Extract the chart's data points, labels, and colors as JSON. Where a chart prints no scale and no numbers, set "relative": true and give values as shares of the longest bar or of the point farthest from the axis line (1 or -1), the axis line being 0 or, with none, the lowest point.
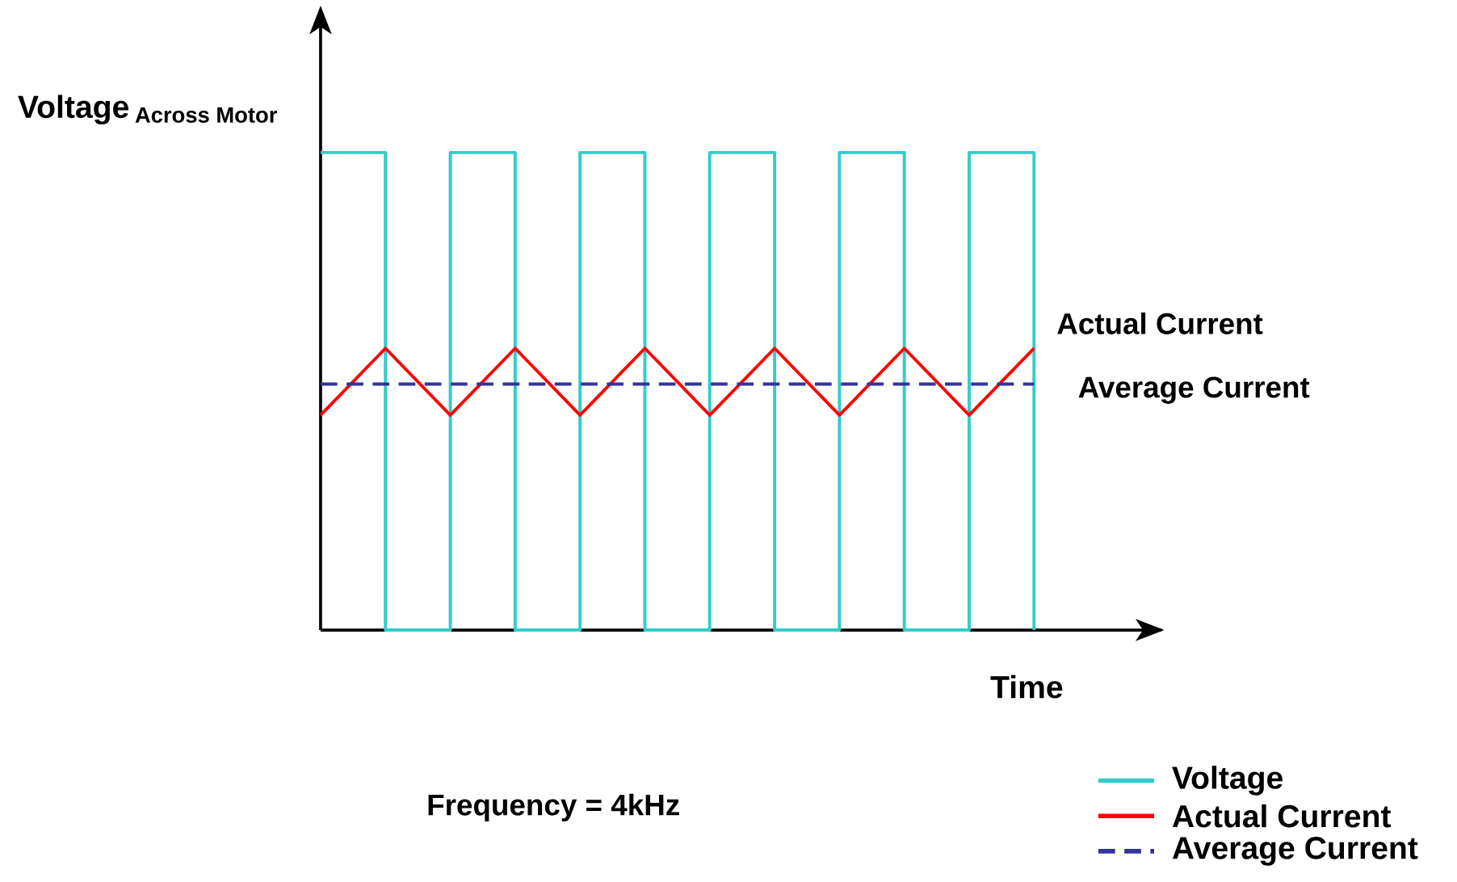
{
  "chart_data": {
    "type": "line",
    "relative": true,
    "xlabel": "Time",
    "ylabel": "\\textbf{Voltage}\\,_{\\textbf{Across Motor}}",
    "categories": [
      null,
      null,
      null,
      null,
      null,
      null,
      null,
      null,
      null,
      null,
      null,
      null
    ],
    "series": [
      {
        "name": "Voltage",
        "type": "step",
        "color": "#33cccc",
        "values": [
          1,
          0,
          1,
          0,
          1,
          0,
          1,
          0,
          1,
          0,
          1,
          0
        ]
      },
      {
        "name": "Actual Current",
        "color": "#ff0000",
        "values": [
          0.45,
          0.59,
          0.45,
          0.59,
          0.45,
          0.59,
          0.45,
          0.59,
          0.45,
          0.59,
          0.45,
          0.59
        ]
      },
      {
        "name": "Average Current",
        "color": "#333399",
        "line_style": "dashed",
        "values": [
          0.515,
          0.515,
          0.515,
          0.515,
          0.515,
          0.515,
          0.515,
          0.515,
          0.515,
          0.515,
          0.515,
          0.515
        ]
      }
    ],
    "annotations": [
      "Actual Current",
      "Average Current",
      "Frequency = 4kHz"
    ],
    "legend": "bottom right",
    "marker": "none"
  }
}
